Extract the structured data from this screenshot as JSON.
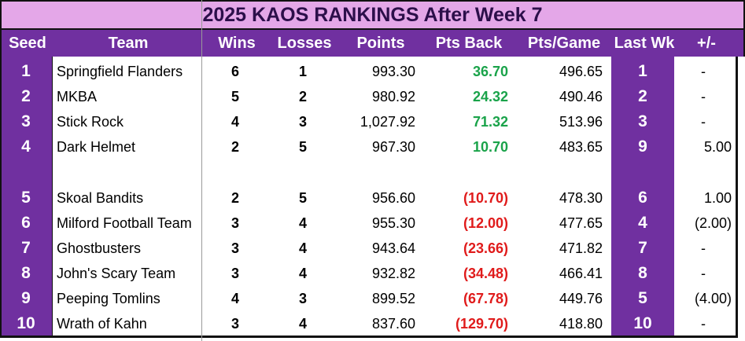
{
  "chart_data": {
    "type": "table",
    "title": "2025 KAOS RANKINGS After Week 7",
    "columns": [
      "Seed",
      "Team",
      "Wins",
      "Losses",
      "Points",
      "Pts Back",
      "Pts/Game",
      "Last Wk",
      "+/-"
    ],
    "colors": {
      "header_bg": "#7030a0",
      "title_bg": "#e4a7e8",
      "positive": "#1aa34a",
      "negative": "#e01b1b"
    },
    "rows": [
      {
        "seed": "1",
        "team": "Springfield Flanders",
        "wins": "6",
        "losses": "1",
        "points": "993.30",
        "pts_back": "36.70",
        "pts_game": "496.65",
        "last_wk": "1",
        "delta": "-",
        "sign": "pos"
      },
      {
        "seed": "2",
        "team": "MKBA",
        "wins": "5",
        "losses": "2",
        "points": "980.92",
        "pts_back": "24.32",
        "pts_game": "490.46",
        "last_wk": "2",
        "delta": "-",
        "sign": "pos"
      },
      {
        "seed": "3",
        "team": "Stick Rock",
        "wins": "4",
        "losses": "3",
        "points": "1,027.92",
        "pts_back": "71.32",
        "pts_game": "513.96",
        "last_wk": "3",
        "delta": "-",
        "sign": "pos"
      },
      {
        "seed": "4",
        "team": "Dark Helmet",
        "wins": "2",
        "losses": "5",
        "points": "967.30",
        "pts_back": "10.70",
        "pts_game": "483.65",
        "last_wk": "9",
        "delta": "5.00",
        "sign": "pos"
      },
      {
        "seed": "5",
        "team": "Skoal Bandits",
        "wins": "2",
        "losses": "5",
        "points": "956.60",
        "pts_back": "(10.70)",
        "pts_game": "478.30",
        "last_wk": "6",
        "delta": "1.00",
        "sign": "neg"
      },
      {
        "seed": "6",
        "team": "Milford Football Team",
        "wins": "3",
        "losses": "4",
        "points": "955.30",
        "pts_back": "(12.00)",
        "pts_game": "477.65",
        "last_wk": "4",
        "delta": "(2.00)",
        "sign": "neg"
      },
      {
        "seed": "7",
        "team": "Ghostbusters",
        "wins": "3",
        "losses": "4",
        "points": "943.64",
        "pts_back": "(23.66)",
        "pts_game": "471.82",
        "last_wk": "7",
        "delta": "-",
        "sign": "neg"
      },
      {
        "seed": "8",
        "team": "John's Scary Team",
        "wins": "3",
        "losses": "4",
        "points": "932.82",
        "pts_back": "(34.48)",
        "pts_game": "466.41",
        "last_wk": "8",
        "delta": "-",
        "sign": "neg"
      },
      {
        "seed": "9",
        "team": "Peeping Tomlins",
        "wins": "4",
        "losses": "3",
        "points": "899.52",
        "pts_back": "(67.78)",
        "pts_game": "449.76",
        "last_wk": "5",
        "delta": "(4.00)",
        "sign": "neg"
      },
      {
        "seed": "10",
        "team": "Wrath of Kahn",
        "wins": "3",
        "losses": "4",
        "points": "837.60",
        "pts_back": "(129.70)",
        "pts_game": "418.80",
        "last_wk": "10",
        "delta": "-",
        "sign": "neg"
      }
    ]
  }
}
